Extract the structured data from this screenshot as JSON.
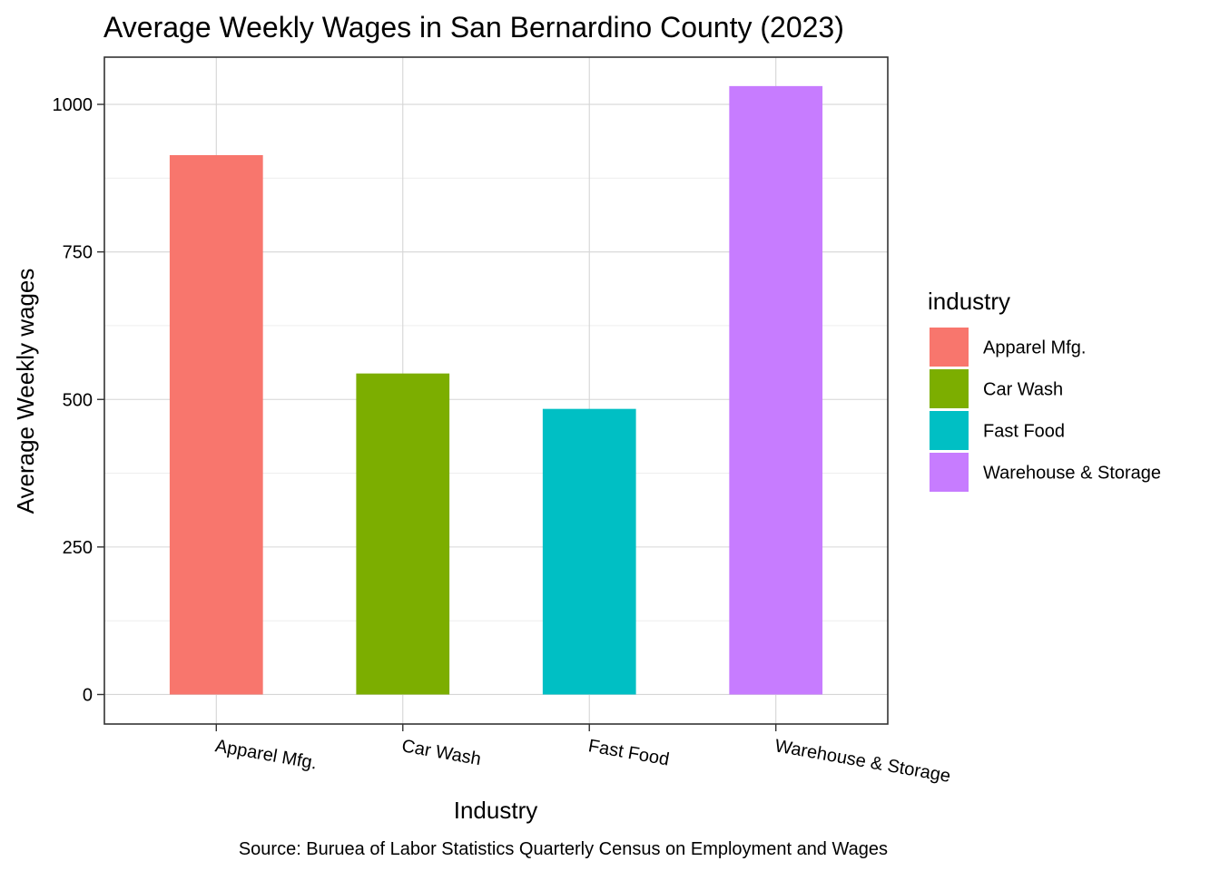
{
  "chart_data": {
    "type": "bar",
    "title": "Average Weekly Wages in San Bernardino County (2023)",
    "xlabel": "Industry",
    "ylabel": "Average Weekly wages",
    "caption": "Source: Buruea of Labor Statistics Quarterly Census on Employment and Wages",
    "categories": [
      "Apparel Mfg.",
      "Car Wash",
      "Fast Food",
      "Warehouse & Storage"
    ],
    "values": [
      914,
      544,
      484,
      1031
    ],
    "colors": [
      "#F8766D",
      "#7CAE00",
      "#00BFC4",
      "#C77CFF"
    ],
    "ylim": [
      -50,
      1080
    ],
    "yticks": [
      0,
      250,
      500,
      750,
      1000
    ],
    "yticks_minor": [
      125,
      375,
      625,
      875
    ],
    "grid": true,
    "legend": {
      "title": "industry",
      "placement": "right",
      "items": [
        "Apparel Mfg.",
        "Car Wash",
        "Fast Food",
        "Warehouse & Storage"
      ]
    }
  }
}
